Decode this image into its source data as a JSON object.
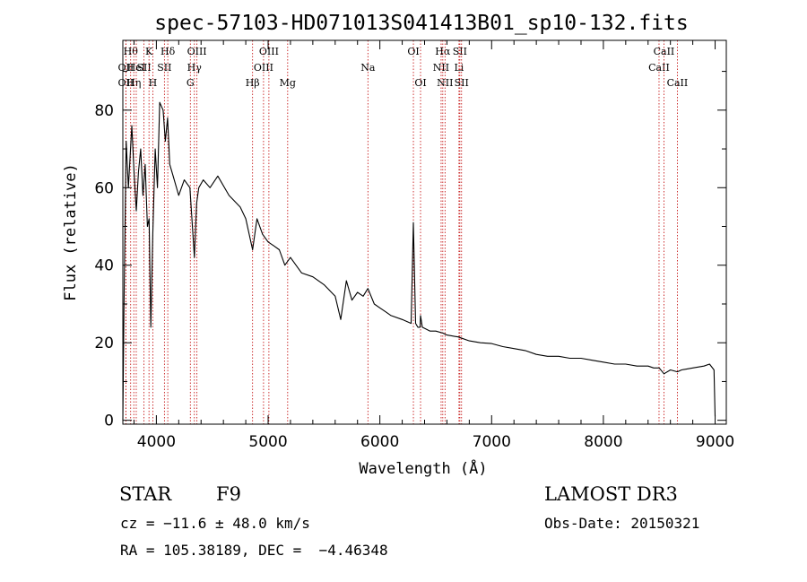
{
  "chart_data": {
    "type": "line",
    "title": "spec-57103-HD071013S041413B01_sp10-132.fits",
    "xlabel": "Wavelength (Å)",
    "ylabel": "Flux (relative)",
    "xlim": [
      3700,
      9100
    ],
    "ylim": [
      -1,
      98
    ],
    "xticks": [
      4000,
      5000,
      6000,
      7000,
      8000,
      9000
    ],
    "yticks": [
      0,
      20,
      40,
      60,
      80
    ],
    "series": [
      {
        "name": "spectrum",
        "x": [
          3700,
          3710,
          3730,
          3750,
          3780,
          3800,
          3820,
          3840,
          3860,
          3880,
          3900,
          3920,
          3935,
          3950,
          3968,
          3990,
          4010,
          4030,
          4060,
          4080,
          4100,
          4120,
          4150,
          4200,
          4250,
          4300,
          4340,
          4360,
          4380,
          4420,
          4480,
          4550,
          4650,
          4750,
          4800,
          4861,
          4900,
          4950,
          5000,
          5050,
          5100,
          5150,
          5200,
          5300,
          5400,
          5500,
          5600,
          5650,
          5700,
          5750,
          5800,
          5850,
          5893,
          5950,
          6000,
          6050,
          6100,
          6200,
          6280,
          6300,
          6320,
          6340,
          6360,
          6364,
          6380,
          6450,
          6500,
          6563,
          6600,
          6700,
          6800,
          6900,
          7000,
          7100,
          7200,
          7300,
          7400,
          7500,
          7600,
          7700,
          7800,
          7900,
          8000,
          8100,
          8200,
          8300,
          8400,
          8450,
          8500,
          8542,
          8600,
          8662,
          8700,
          8800,
          8900,
          8950,
          8990,
          9000
        ],
        "values": [
          0,
          28,
          72,
          60,
          76,
          64,
          54,
          64,
          70,
          58,
          66,
          50,
          52,
          24,
          48,
          70,
          60,
          82,
          80,
          72,
          78,
          66,
          63,
          58,
          62,
          60,
          42,
          56,
          60,
          62,
          60,
          63,
          58,
          55,
          52,
          44,
          52,
          48,
          46,
          45,
          44,
          40,
          42,
          38,
          37,
          35,
          32,
          26,
          36,
          31,
          33,
          32,
          34,
          30,
          29,
          28,
          27,
          26,
          25,
          51,
          25,
          24,
          24,
          27,
          24,
          23,
          23,
          22.5,
          22,
          21.5,
          20.5,
          20,
          19.8,
          19,
          18.5,
          18,
          17,
          16.5,
          16.5,
          16,
          16,
          15.5,
          15,
          14.5,
          14.5,
          14,
          14,
          13.5,
          13.5,
          12,
          13,
          12.5,
          13,
          13.5,
          14,
          14.5,
          13,
          1
        ]
      }
    ],
    "lines": [
      {
        "wave": 3727,
        "label": "OII",
        "row": 1
      },
      {
        "wave": 3727,
        "label": "OII",
        "row": 2
      },
      {
        "wave": 3770,
        "label": "Hθ",
        "row": 0
      },
      {
        "wave": 3798,
        "label": "Hη",
        "row": 2
      },
      {
        "wave": 3820,
        "label": "HeI",
        "row": 1
      },
      {
        "wave": 3889,
        "label": "SII",
        "row": 1
      },
      {
        "wave": 3934,
        "label": "K",
        "row": 0
      },
      {
        "wave": 3968,
        "label": "H",
        "row": 2
      },
      {
        "wave": 4102,
        "label": "Hδ",
        "row": 0
      },
      {
        "wave": 4072,
        "label": "SII",
        "row": 1
      },
      {
        "wave": 4304,
        "label": "G",
        "row": 2
      },
      {
        "wave": 4340,
        "label": "Hγ",
        "row": 1
      },
      {
        "wave": 4363,
        "label": "OIII",
        "row": 0
      },
      {
        "wave": 4861,
        "label": "Hβ",
        "row": 2
      },
      {
        "wave": 4959,
        "label": "OIII",
        "row": 1
      },
      {
        "wave": 5007,
        "label": "OIII",
        "row": 0
      },
      {
        "wave": 5175,
        "label": "Mg",
        "row": 2
      },
      {
        "wave": 5893,
        "label": "Na",
        "row": 1
      },
      {
        "wave": 6300,
        "label": "OI",
        "row": 0
      },
      {
        "wave": 6364,
        "label": "OI",
        "row": 2
      },
      {
        "wave": 6548,
        "label": "NII",
        "row": 1
      },
      {
        "wave": 6563,
        "label": "Hα",
        "row": 0
      },
      {
        "wave": 6583,
        "label": "NII",
        "row": 2
      },
      {
        "wave": 6708,
        "label": "Li",
        "row": 1
      },
      {
        "wave": 6716,
        "label": "SII",
        "row": 0
      },
      {
        "wave": 6731,
        "label": "SII",
        "row": 2
      },
      {
        "wave": 8498,
        "label": "CaII",
        "row": 1
      },
      {
        "wave": 8542,
        "label": "CaII",
        "row": 0
      },
      {
        "wave": 8662,
        "label": "CaII",
        "row": 2
      }
    ]
  },
  "info": {
    "object_class": "STAR",
    "subclass": "F9",
    "survey": "LAMOST DR3",
    "redshift": "cz = −11.6 ± 48.0 km/s",
    "obs_date": "Obs-Date: 20150321",
    "coords": "RA = 105.38189, DEC =  −4.46348"
  }
}
